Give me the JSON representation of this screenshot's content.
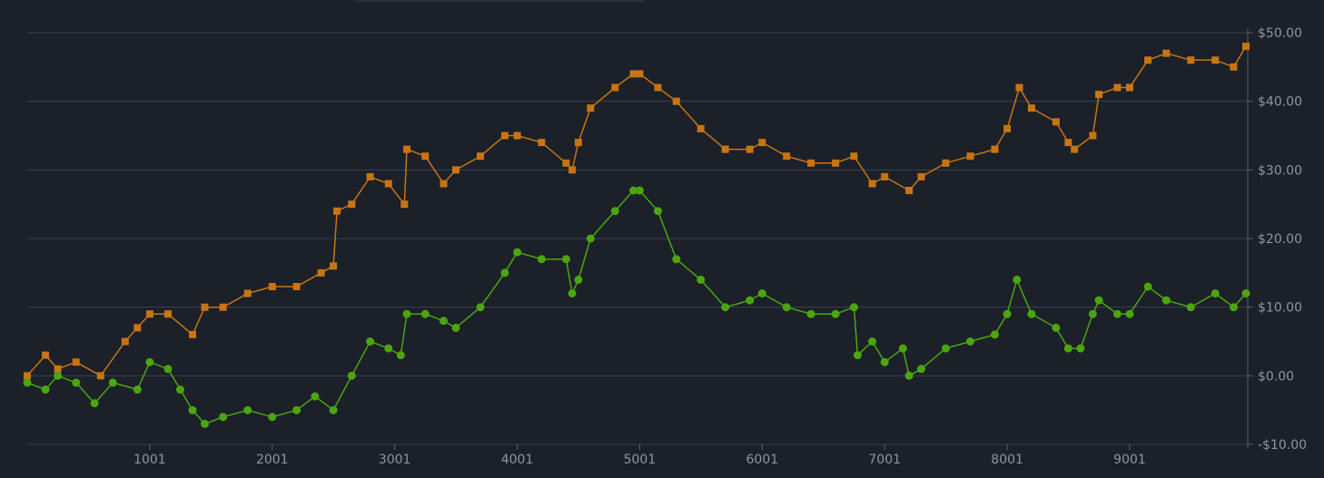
{
  "chart_data": {
    "type": "line",
    "title": "",
    "xlabel": "",
    "ylabel": "",
    "x_range": [
      1,
      9950
    ],
    "ylim": [
      -10,
      50
    ],
    "x_ticks": [
      1001,
      2001,
      3001,
      4001,
      5001,
      6001,
      7001,
      8001,
      9001
    ],
    "x_tick_labels": [
      "1001",
      "2001",
      "3001",
      "4001",
      "5001",
      "6001",
      "7001",
      "8001",
      "9001"
    ],
    "y_ticks": [
      -10,
      0,
      10,
      20,
      30,
      40,
      50
    ],
    "y_tick_labels": [
      "-$10.00",
      "$0.00",
      "$10.00",
      "$20.00",
      "$30.00",
      "$40.00",
      "$50.00"
    ],
    "grid": "horizontal",
    "legend": "none",
    "series": [
      {
        "marker": "square",
        "color": "#c87412",
        "x": [
          1,
          150,
          250,
          400,
          600,
          800,
          900,
          1001,
          1150,
          1350,
          1450,
          1600,
          1800,
          2001,
          2200,
          2400,
          2500,
          2530,
          2650,
          2800,
          2950,
          3080,
          3100,
          3250,
          3400,
          3500,
          3700,
          3900,
          4001,
          4200,
          4400,
          4450,
          4500,
          4600,
          4800,
          4950,
          5001,
          5150,
          5300,
          5500,
          5700,
          5900,
          6001,
          6200,
          6400,
          6600,
          6750,
          6900,
          7001,
          7200,
          7300,
          7500,
          7700,
          7900,
          8001,
          8100,
          8200,
          8400,
          8500,
          8550,
          8700,
          8750,
          8900,
          9001,
          9150,
          9300,
          9500,
          9700,
          9850,
          9950
        ],
        "y": [
          0,
          3,
          1,
          2,
          0,
          5,
          7,
          9,
          9,
          6,
          10,
          10,
          12,
          13,
          13,
          15,
          16,
          24,
          25,
          29,
          28,
          25,
          33,
          32,
          28,
          30,
          32,
          35,
          35,
          34,
          31,
          30,
          34,
          39,
          42,
          44,
          44,
          42,
          40,
          36,
          33,
          33,
          34,
          32,
          31,
          31,
          32,
          28,
          29,
          27,
          29,
          31,
          32,
          33,
          36,
          42,
          39,
          37,
          34,
          33,
          35,
          41,
          42,
          42,
          46,
          47,
          46,
          46,
          45,
          48
        ]
      },
      {
        "marker": "circle",
        "color": "#4ca50f",
        "x": [
          1,
          150,
          250,
          400,
          550,
          700,
          900,
          1001,
          1150,
          1250,
          1350,
          1450,
          1600,
          1800,
          2001,
          2200,
          2350,
          2500,
          2650,
          2800,
          2950,
          3050,
          3100,
          3250,
          3400,
          3500,
          3700,
          3900,
          4001,
          4200,
          4400,
          4450,
          4500,
          4600,
          4800,
          4950,
          5001,
          5150,
          5300,
          5500,
          5700,
          5900,
          6001,
          6200,
          6400,
          6600,
          6750,
          6780,
          6900,
          7001,
          7150,
          7200,
          7300,
          7500,
          7700,
          7900,
          8001,
          8080,
          8200,
          8400,
          8500,
          8600,
          8700,
          8750,
          8900,
          9001,
          9150,
          9300,
          9500,
          9700,
          9850,
          9950
        ],
        "y": [
          -1,
          -2,
          0,
          -1,
          -4,
          -1,
          -2,
          2,
          1,
          -2,
          -5,
          -7,
          -6,
          -5,
          -6,
          -5,
          -3,
          -5,
          0,
          5,
          4,
          3,
          9,
          9,
          8,
          7,
          10,
          15,
          18,
          17,
          17,
          12,
          14,
          20,
          24,
          27,
          27,
          24,
          17,
          14,
          10,
          11,
          12,
          10,
          9,
          9,
          10,
          3,
          5,
          2,
          4,
          0,
          1,
          4,
          5,
          6,
          9,
          14,
          9,
          7,
          4,
          4,
          9,
          11,
          9,
          9,
          13,
          11,
          10,
          12,
          10,
          12
        ]
      }
    ]
  }
}
